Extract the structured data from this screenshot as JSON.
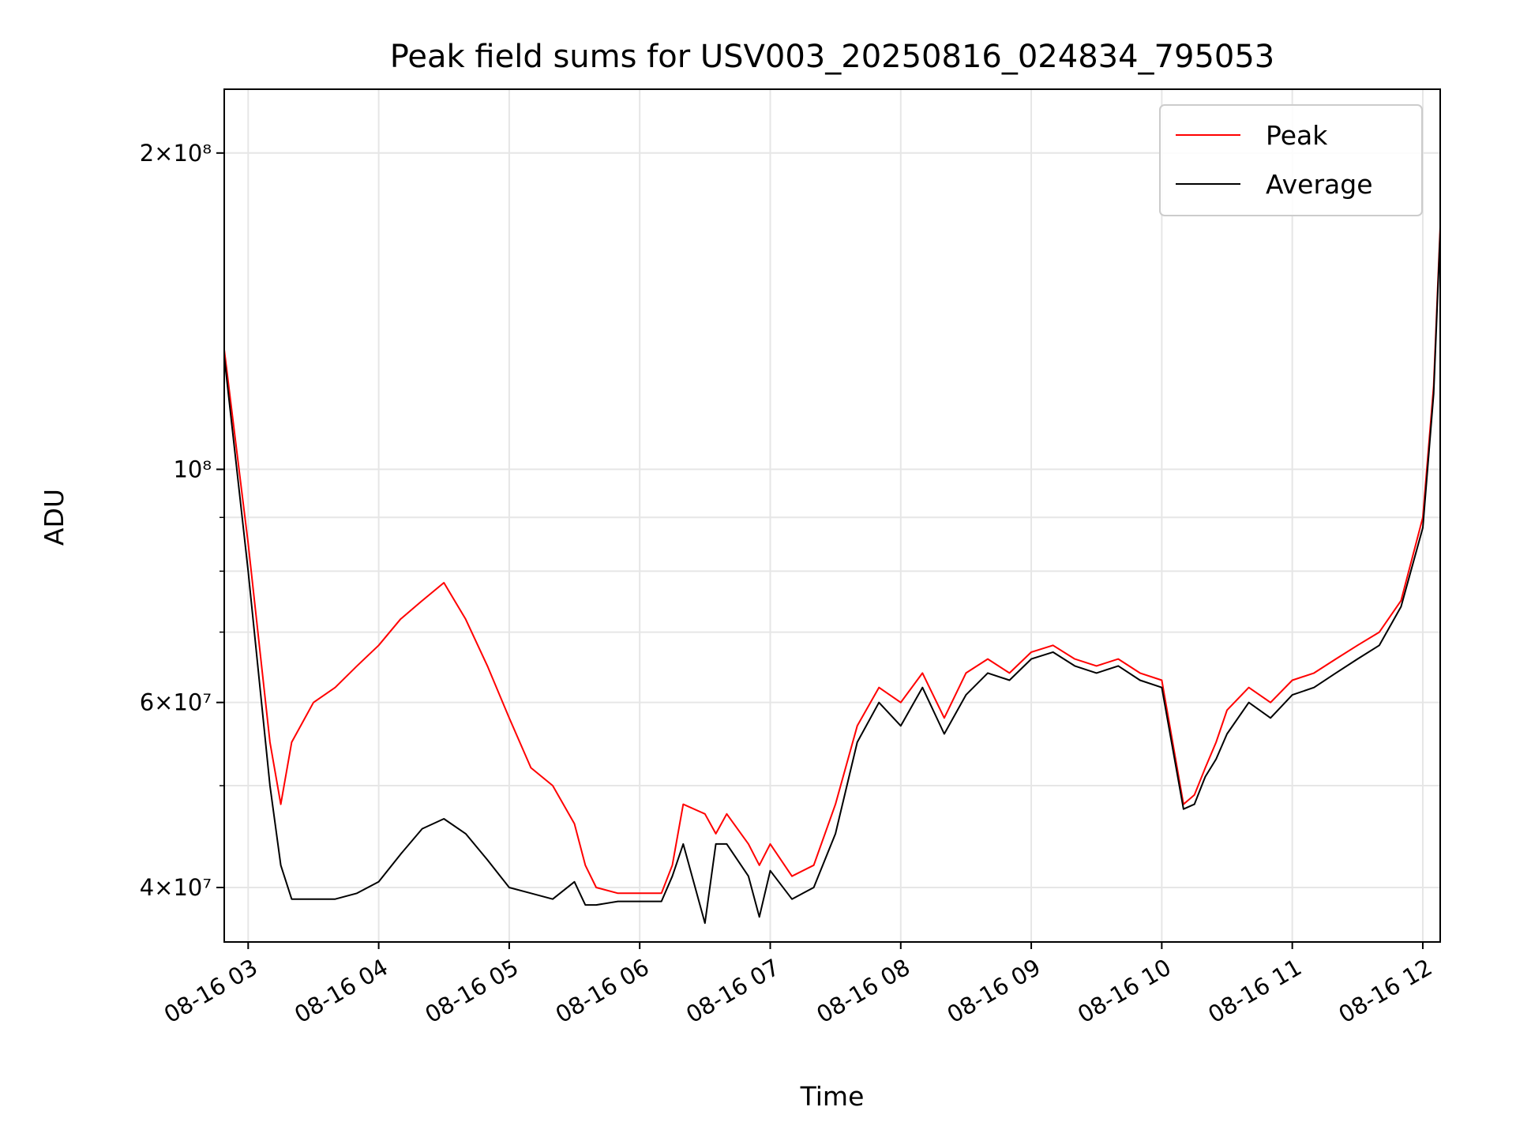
{
  "chart_data": {
    "type": "line",
    "title": "Peak field sums for USV003_20250816_024834_795053",
    "xlabel": "Time",
    "ylabel": "ADU",
    "y_scale": "log",
    "ylim": [
      35500000,
      230000000
    ],
    "xlim": [
      "08-16 02:49",
      "08-16 12:08"
    ],
    "grid": true,
    "legend": "top-right",
    "x_ticks": [
      "08-16 03",
      "08-16 04",
      "08-16 05",
      "08-16 06",
      "08-16 07",
      "08-16 08",
      "08-16 09",
      "08-16 10",
      "08-16 11",
      "08-16 12"
    ],
    "y_ticks": [
      {
        "value": 40000000,
        "label": "4×10⁷"
      },
      {
        "value": 60000000,
        "label": "6×10⁷"
      },
      {
        "value": 100000000,
        "label": "10⁸"
      },
      {
        "value": 200000000,
        "label": "2×10⁸"
      }
    ],
    "series": [
      {
        "name": "Peak",
        "color": "#ff0000",
        "x": [
          "02:49",
          "03:00",
          "03:10",
          "03:15",
          "03:20",
          "03:30",
          "03:40",
          "03:50",
          "04:00",
          "04:10",
          "04:20",
          "04:30",
          "04:40",
          "04:50",
          "05:00",
          "05:10",
          "05:20",
          "05:30",
          "05:35",
          "05:40",
          "05:50",
          "06:00",
          "06:10",
          "06:15",
          "06:20",
          "06:30",
          "06:35",
          "06:40",
          "06:50",
          "06:55",
          "07:00",
          "07:10",
          "07:20",
          "07:30",
          "07:40",
          "07:50",
          "08:00",
          "08:10",
          "08:20",
          "08:30",
          "08:40",
          "08:50",
          "09:00",
          "09:10",
          "09:20",
          "09:30",
          "09:40",
          "09:50",
          "10:00",
          "10:10",
          "10:15",
          "10:20",
          "10:25",
          "10:30",
          "10:40",
          "10:50",
          "11:00",
          "11:10",
          "11:20",
          "11:30",
          "11:40",
          "11:50",
          "12:00",
          "12:05",
          "12:08"
        ],
        "y": [
          130000000,
          85000000,
          55000000,
          48000000,
          55000000,
          60000000,
          62000000,
          65000000,
          68000000,
          72000000,
          75000000,
          78000000,
          72000000,
          65000000,
          58000000,
          52000000,
          50000000,
          46000000,
          42000000,
          40000000,
          39500000,
          39500000,
          39500000,
          42000000,
          48000000,
          47000000,
          45000000,
          47000000,
          44000000,
          42000000,
          44000000,
          41000000,
          42000000,
          48000000,
          57000000,
          62000000,
          60000000,
          64000000,
          58000000,
          64000000,
          66000000,
          64000000,
          67000000,
          68000000,
          66000000,
          65000000,
          66000000,
          64000000,
          63000000,
          48000000,
          49000000,
          52000000,
          55000000,
          59000000,
          62000000,
          60000000,
          63000000,
          64000000,
          66000000,
          68000000,
          70000000,
          75000000,
          90000000,
          120000000,
          170000000
        ]
      },
      {
        "name": "Average",
        "color": "#000000",
        "x": [
          "02:49",
          "03:00",
          "03:10",
          "03:15",
          "03:20",
          "03:30",
          "03:40",
          "03:50",
          "04:00",
          "04:10",
          "04:20",
          "04:30",
          "04:40",
          "04:50",
          "05:00",
          "05:10",
          "05:20",
          "05:30",
          "05:35",
          "05:40",
          "05:50",
          "06:00",
          "06:10",
          "06:15",
          "06:20",
          "06:30",
          "06:35",
          "06:40",
          "06:50",
          "06:55",
          "07:00",
          "07:10",
          "07:20",
          "07:30",
          "07:40",
          "07:50",
          "08:00",
          "08:10",
          "08:20",
          "08:30",
          "08:40",
          "08:50",
          "09:00",
          "09:10",
          "09:20",
          "09:30",
          "09:40",
          "09:50",
          "10:00",
          "10:10",
          "10:15",
          "10:20",
          "10:25",
          "10:30",
          "10:40",
          "10:50",
          "11:00",
          "11:10",
          "11:20",
          "11:30",
          "11:40",
          "11:50",
          "12:00",
          "12:05",
          "12:08"
        ],
        "y": [
          128000000,
          80000000,
          50000000,
          42000000,
          39000000,
          39000000,
          39000000,
          39500000,
          40500000,
          43000000,
          45500000,
          46500000,
          45000000,
          42500000,
          40000000,
          39500000,
          39000000,
          40500000,
          38500000,
          38500000,
          38800000,
          38800000,
          38800000,
          41000000,
          44000000,
          37000000,
          44000000,
          44000000,
          41000000,
          37500000,
          41500000,
          39000000,
          40000000,
          45000000,
          55000000,
          60000000,
          57000000,
          62000000,
          56000000,
          61000000,
          64000000,
          63000000,
          66000000,
          67000000,
          65000000,
          64000000,
          65000000,
          63000000,
          62000000,
          47500000,
          48000000,
          51000000,
          53000000,
          56000000,
          60000000,
          58000000,
          61000000,
          62000000,
          64000000,
          66000000,
          68000000,
          74000000,
          88000000,
          118000000,
          168000000
        ]
      }
    ]
  }
}
